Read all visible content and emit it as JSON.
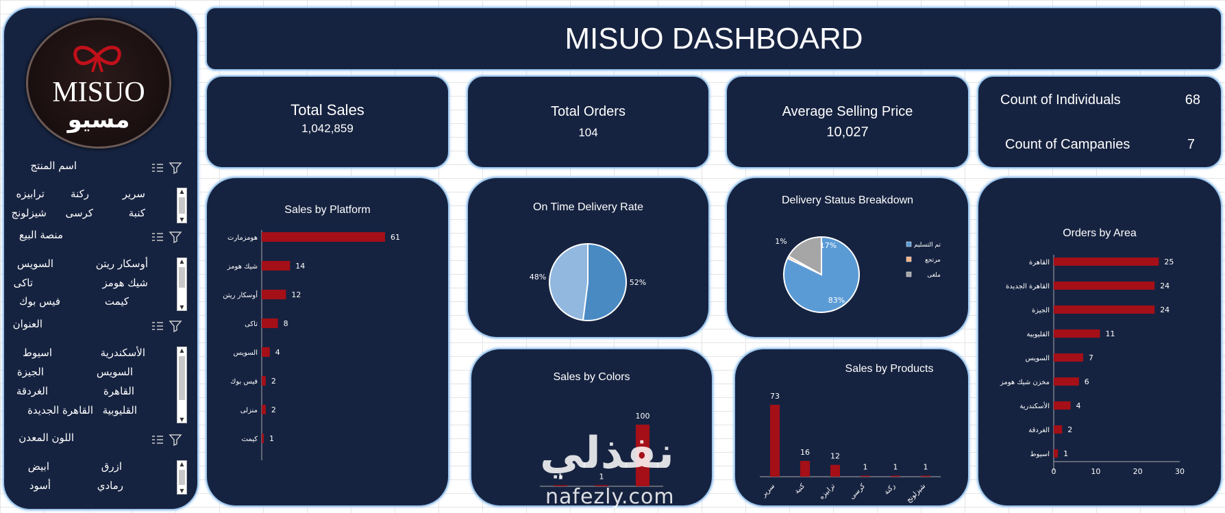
{
  "dashboard": {
    "title": "MISUO DASHBOARD",
    "logo_text_en": "MISUO",
    "logo_text_ar": "مسيو"
  },
  "kpis": {
    "total_sales": {
      "label": "Total Sales",
      "value": "1,042,859"
    },
    "total_orders": {
      "label": "Total Orders",
      "value": "104"
    },
    "avg_price": {
      "label": "Average Selling Price",
      "value": "10,027"
    },
    "individuals": {
      "label": "Count of Individuals",
      "value": "68"
    },
    "companies": {
      "label": "Count of Campanies",
      "value": "7"
    }
  },
  "slicers": [
    {
      "title": "اسم المنتج",
      "items": [
        "سرير",
        "ركنة",
        "ترابيزه",
        "كنبة",
        "كرسى",
        "شيزلونج"
      ]
    },
    {
      "title": "منصة البيع",
      "items": [
        "أوسكار ريتن",
        "السويس",
        "شيك هومز",
        "تاكى",
        "كيمت",
        "فيس بوك"
      ]
    },
    {
      "title": "العنوان",
      "items": [
        "الأسكندرية",
        "اسيوط",
        "السويس",
        "الجيزة",
        "القاهرة",
        "الغردقة",
        "القليوبية",
        "القاهرة الجديدة"
      ]
    },
    {
      "title": "اللون المعدن",
      "items": [
        "ازرق",
        "ابيض",
        "رمادي",
        "أسود"
      ]
    }
  ],
  "chart_data": [
    {
      "id": "platform",
      "type": "bar",
      "orientation": "horizontal",
      "title": "Sales by Platform",
      "categories": [
        "هومزمارت",
        "شيك هومز",
        "أوسكار ريتن",
        "تاكى",
        "السويس",
        "فيس بوك",
        "منزلى",
        "كيمت"
      ],
      "values": [
        61,
        14,
        12,
        8,
        4,
        2,
        2,
        1
      ],
      "color": "#a50f18"
    },
    {
      "id": "ontime",
      "type": "pie",
      "title": "On Time Delivery Rate",
      "labels": [
        "52%",
        "48%"
      ],
      "values": [
        52,
        48
      ],
      "colors": [
        "#4a8ac3",
        "#92b8e0"
      ]
    },
    {
      "id": "status",
      "type": "pie",
      "title": "Delivery Status Breakdown",
      "categories": [
        "تم التسليم",
        "مرتجع",
        "ملغى"
      ],
      "labels": [
        "83%",
        "1%",
        "17%"
      ],
      "values": [
        83,
        1,
        17
      ],
      "colors": [
        "#5b9bd5",
        "#f4b183",
        "#a6a6a6"
      ],
      "legend": "right"
    },
    {
      "id": "colors",
      "type": "bar",
      "title": "Sales by Colors",
      "categories": [
        "",
        "",
        ""
      ],
      "values": [
        1,
        1,
        100
      ],
      "color": "#a50f18"
    },
    {
      "id": "products",
      "type": "bar",
      "title": "Sales by Products",
      "categories": [
        "سرير",
        "كنبة",
        "ترابيزه",
        "كرسى",
        "ركنة",
        "شيزلونج"
      ],
      "values": [
        73,
        16,
        12,
        1,
        1,
        1
      ],
      "color": "#a50f18"
    },
    {
      "id": "area",
      "type": "bar",
      "orientation": "horizontal",
      "title": "Orders by Area",
      "categories": [
        "القاهرة",
        "القاهرة الجديدة",
        "الجيزة",
        "القليوبية",
        "السويس",
        "مخزن شيك هومز",
        "الأسكندرية",
        "الغردقة",
        "اسيوط"
      ],
      "values": [
        25,
        24,
        24,
        11,
        7,
        6,
        4,
        2,
        1
      ],
      "xticks": [
        0,
        10,
        20,
        30
      ],
      "xlim": [
        0,
        30
      ],
      "color": "#a50f18"
    }
  ],
  "watermark": {
    "arabic": "نفذلي",
    "latin": "nafezly.com"
  }
}
